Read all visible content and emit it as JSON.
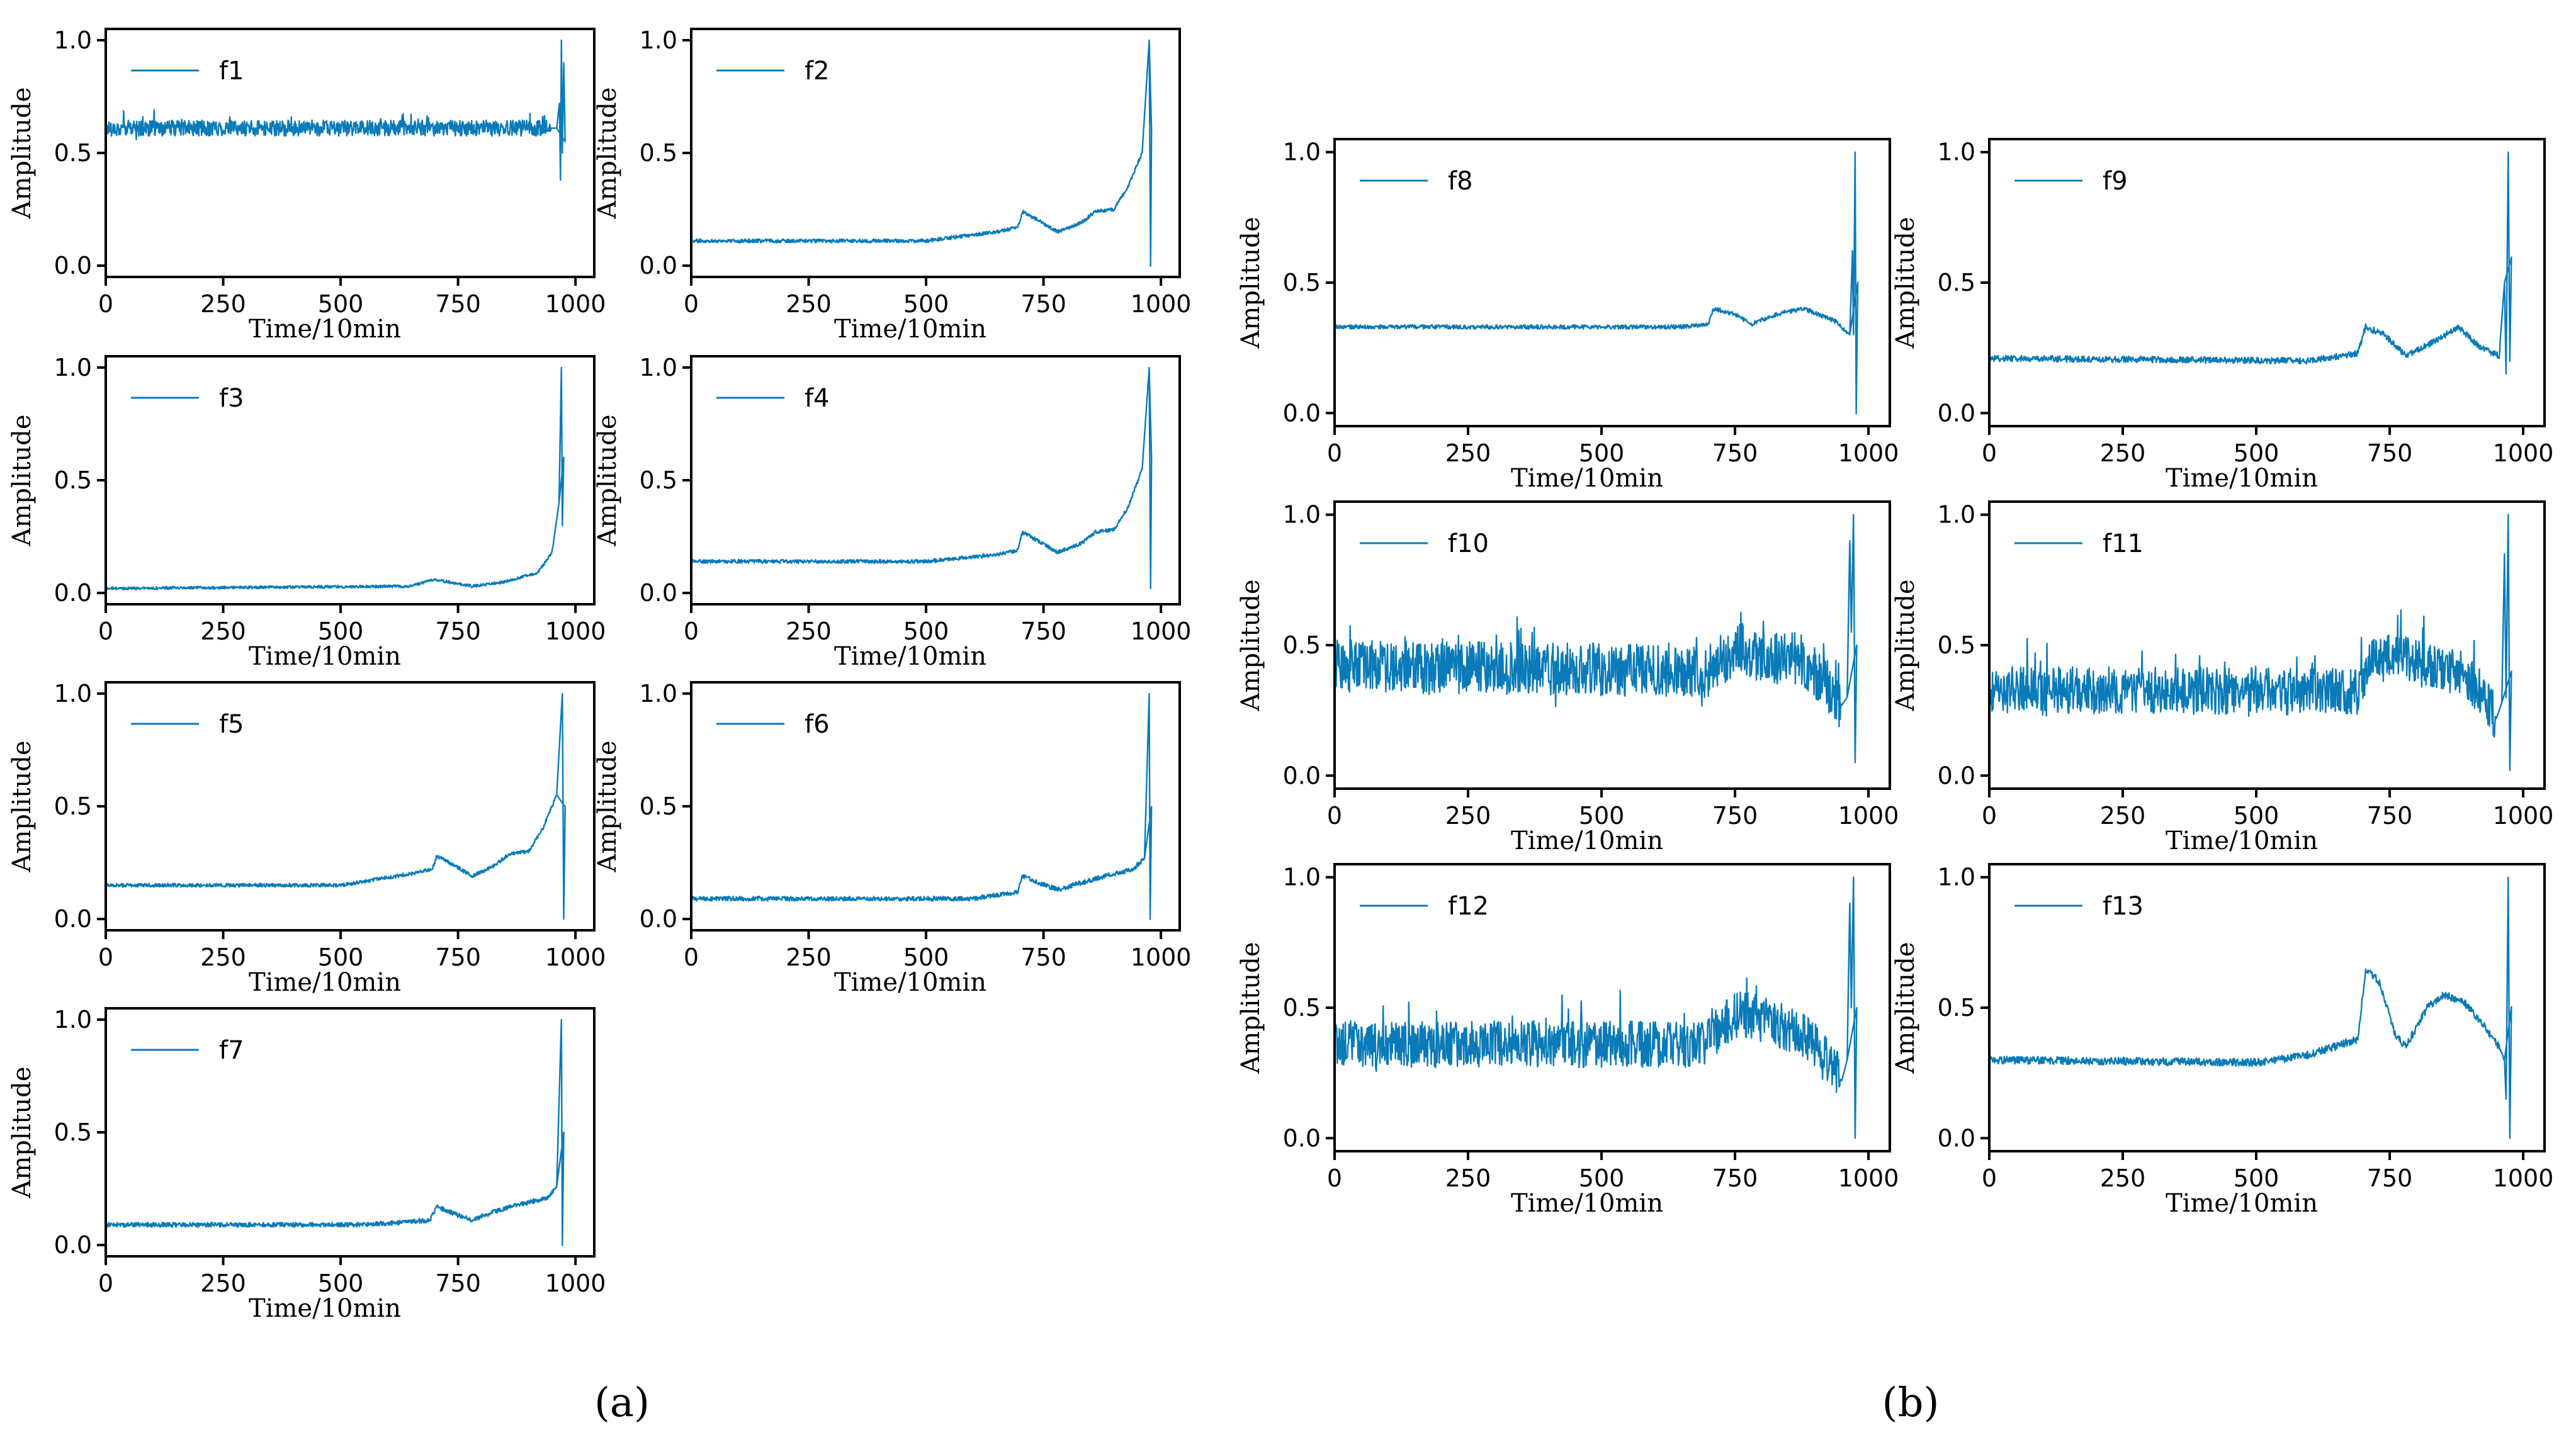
{
  "figure": {
    "panel_labels": [
      "(a)",
      "(b)"
    ],
    "series_color": "#0a7bb8"
  },
  "chart_data": [
    {
      "type": "line",
      "panel": "(a)",
      "title": "",
      "legend": "f1",
      "xlabel": "Time/10min",
      "ylabel": "Amplitude",
      "xlim": [
        0,
        1040
      ],
      "ylim": [
        -0.05,
        1.05
      ],
      "xticks": [
        0,
        250,
        500,
        750,
        1000
      ],
      "yticks": [
        0.0,
        0.5,
        1.0
      ],
      "legend_position": "top-left",
      "series": [
        {
          "name": "f1",
          "pattern": "noisy",
          "keyframes": [
            [
              0,
              0.61
            ],
            [
              960,
              0.61
            ],
            [
              966,
              0.72
            ],
            [
              968,
              0.38
            ],
            [
              970,
              1.0
            ],
            [
              972,
              0.5
            ],
            [
              975,
              0.9
            ],
            [
              978,
              0.55
            ]
          ],
          "noise_amplitude": 0.035
        }
      ]
    },
    {
      "type": "line",
      "panel": "(a)",
      "title": "",
      "legend": "f2",
      "xlabel": "Time/10min",
      "ylabel": "Amplitude",
      "xlim": [
        0,
        1040
      ],
      "ylim": [
        -0.05,
        1.05
      ],
      "xticks": [
        0,
        250,
        500,
        750,
        1000
      ],
      "yticks": [
        0.0,
        0.5,
        1.0
      ],
      "legend_position": "top-left",
      "series": [
        {
          "name": "f2",
          "pattern": "trend",
          "keyframes": [
            [
              0,
              0.11
            ],
            [
              500,
              0.11
            ],
            [
              650,
              0.15
            ],
            [
              695,
              0.17
            ],
            [
              705,
              0.24
            ],
            [
              740,
              0.2
            ],
            [
              780,
              0.15
            ],
            [
              830,
              0.19
            ],
            [
              860,
              0.24
            ],
            [
              900,
              0.25
            ],
            [
              930,
              0.35
            ],
            [
              960,
              0.5
            ],
            [
              975,
              1.0
            ],
            [
              978,
              0.0
            ],
            [
              980,
              0.6
            ]
          ],
          "noise_amplitude": 0.008
        }
      ]
    },
    {
      "type": "line",
      "panel": "(a)",
      "title": "",
      "legend": "f3",
      "xlabel": "Time/10min",
      "ylabel": "Amplitude",
      "xlim": [
        0,
        1040
      ],
      "ylim": [
        -0.05,
        1.05
      ],
      "xticks": [
        0,
        250,
        500,
        750,
        1000
      ],
      "yticks": [
        0.0,
        0.5,
        1.0
      ],
      "legend_position": "top-left",
      "series": [
        {
          "name": "f3",
          "pattern": "trend",
          "keyframes": [
            [
              0,
              0.02
            ],
            [
              650,
              0.03
            ],
            [
              700,
              0.06
            ],
            [
              780,
              0.03
            ],
            [
              850,
              0.05
            ],
            [
              920,
              0.09
            ],
            [
              950,
              0.18
            ],
            [
              965,
              0.4
            ],
            [
              970,
              1.0
            ],
            [
              972,
              0.3
            ],
            [
              975,
              0.6
            ]
          ],
          "noise_amplitude": 0.006
        }
      ]
    },
    {
      "type": "line",
      "panel": "(a)",
      "title": "",
      "legend": "f4",
      "xlabel": "Time/10min",
      "ylabel": "Amplitude",
      "xlim": [
        0,
        1040
      ],
      "ylim": [
        -0.05,
        1.05
      ],
      "xticks": [
        0,
        250,
        500,
        750,
        1000
      ],
      "yticks": [
        0.0,
        0.5,
        1.0
      ],
      "legend_position": "top-left",
      "series": [
        {
          "name": "f4",
          "pattern": "trend",
          "keyframes": [
            [
              0,
              0.14
            ],
            [
              500,
              0.14
            ],
            [
              650,
              0.17
            ],
            [
              695,
              0.19
            ],
            [
              705,
              0.27
            ],
            [
              740,
              0.23
            ],
            [
              780,
              0.18
            ],
            [
              830,
              0.22
            ],
            [
              860,
              0.27
            ],
            [
              900,
              0.28
            ],
            [
              930,
              0.38
            ],
            [
              960,
              0.55
            ],
            [
              975,
              1.0
            ],
            [
              978,
              0.02
            ],
            [
              980,
              0.6
            ]
          ],
          "noise_amplitude": 0.008
        }
      ]
    },
    {
      "type": "line",
      "panel": "(a)",
      "title": "",
      "legend": "f5",
      "xlabel": "Time/10min",
      "ylabel": "Amplitude",
      "xlim": [
        0,
        1040
      ],
      "ylim": [
        -0.05,
        1.05
      ],
      "xticks": [
        0,
        250,
        500,
        750,
        1000
      ],
      "yticks": [
        0.0,
        0.5,
        1.0
      ],
      "legend_position": "top-left",
      "series": [
        {
          "name": "f5",
          "pattern": "trend",
          "keyframes": [
            [
              0,
              0.15
            ],
            [
              500,
              0.15
            ],
            [
              650,
              0.2
            ],
            [
              695,
              0.22
            ],
            [
              705,
              0.28
            ],
            [
              740,
              0.24
            ],
            [
              780,
              0.19
            ],
            [
              830,
              0.24
            ],
            [
              860,
              0.29
            ],
            [
              900,
              0.3
            ],
            [
              930,
              0.4
            ],
            [
              960,
              0.55
            ],
            [
              972,
              1.0
            ],
            [
              975,
              0.0
            ],
            [
              978,
              0.5
            ]
          ],
          "noise_amplitude": 0.008
        }
      ]
    },
    {
      "type": "line",
      "panel": "(a)",
      "title": "",
      "legend": "f6",
      "xlabel": "Time/10min",
      "ylabel": "Amplitude",
      "xlim": [
        0,
        1040
      ],
      "ylim": [
        -0.05,
        1.05
      ],
      "xticks": [
        0,
        250,
        500,
        750,
        1000
      ],
      "yticks": [
        0.0,
        0.5,
        1.0
      ],
      "legend_position": "top-left",
      "series": [
        {
          "name": "f6",
          "pattern": "trend",
          "keyframes": [
            [
              0,
              0.09
            ],
            [
              600,
              0.09
            ],
            [
              695,
              0.12
            ],
            [
              705,
              0.19
            ],
            [
              740,
              0.16
            ],
            [
              780,
              0.13
            ],
            [
              830,
              0.16
            ],
            [
              880,
              0.19
            ],
            [
              940,
              0.22
            ],
            [
              965,
              0.27
            ],
            [
              975,
              1.0
            ],
            [
              977,
              0.0
            ],
            [
              980,
              0.5
            ]
          ],
          "noise_amplitude": 0.01
        }
      ]
    },
    {
      "type": "line",
      "panel": "(a)",
      "title": "",
      "legend": "f7",
      "xlabel": "Time/10min",
      "ylabel": "Amplitude",
      "xlim": [
        0,
        1040
      ],
      "ylim": [
        -0.05,
        1.05
      ],
      "xticks": [
        0,
        250,
        500,
        750,
        1000
      ],
      "yticks": [
        0.0,
        0.5,
        1.0
      ],
      "legend_position": "top-left",
      "series": [
        {
          "name": "f7",
          "pattern": "trend",
          "keyframes": [
            [
              0,
              0.09
            ],
            [
              550,
              0.09
            ],
            [
              690,
              0.11
            ],
            [
              705,
              0.17
            ],
            [
              740,
              0.14
            ],
            [
              780,
              0.11
            ],
            [
              830,
              0.15
            ],
            [
              880,
              0.18
            ],
            [
              940,
              0.21
            ],
            [
              960,
              0.26
            ],
            [
              970,
              1.0
            ],
            [
              972,
              0.0
            ],
            [
              975,
              0.5
            ]
          ],
          "noise_amplitude": 0.01
        }
      ]
    },
    {
      "type": "line",
      "panel": "(b)",
      "title": "",
      "legend": "f8",
      "xlabel": "Time/10min",
      "ylabel": "Amplitude",
      "xlim": [
        0,
        1040
      ],
      "ylim": [
        -0.05,
        1.05
      ],
      "xticks": [
        0,
        250,
        500,
        750,
        1000
      ],
      "yticks": [
        0.0,
        0.5,
        1.0
      ],
      "legend_position": "top-left",
      "series": [
        {
          "name": "f8",
          "pattern": "trend",
          "keyframes": [
            [
              0,
              0.33
            ],
            [
              650,
              0.33
            ],
            [
              700,
              0.34
            ],
            [
              710,
              0.4
            ],
            [
              750,
              0.38
            ],
            [
              780,
              0.34
            ],
            [
              830,
              0.38
            ],
            [
              880,
              0.4
            ],
            [
              940,
              0.35
            ],
            [
              965,
              0.3
            ],
            [
              970,
              0.62
            ],
            [
              972,
              0.3
            ],
            [
              975,
              1.0
            ],
            [
              977,
              0.0
            ],
            [
              980,
              0.5
            ]
          ],
          "noise_amplitude": 0.008
        }
      ]
    },
    {
      "type": "line",
      "panel": "(b)",
      "title": "",
      "legend": "f9",
      "xlabel": "Time/10min",
      "ylabel": "Amplitude",
      "xlim": [
        0,
        1040
      ],
      "ylim": [
        -0.05,
        1.05
      ],
      "xticks": [
        0,
        250,
        500,
        750,
        1000
      ],
      "yticks": [
        0.0,
        0.5,
        1.0
      ],
      "legend_position": "top-left",
      "series": [
        {
          "name": "f9",
          "pattern": "trend",
          "keyframes": [
            [
              0,
              0.21
            ],
            [
              600,
              0.2
            ],
            [
              690,
              0.23
            ],
            [
              705,
              0.33
            ],
            [
              740,
              0.3
            ],
            [
              780,
              0.22
            ],
            [
              830,
              0.27
            ],
            [
              880,
              0.33
            ],
            [
              920,
              0.25
            ],
            [
              955,
              0.22
            ],
            [
              965,
              0.5
            ],
            [
              968,
              0.15
            ],
            [
              972,
              1.0
            ],
            [
              975,
              0.2
            ],
            [
              978,
              0.6
            ]
          ],
          "noise_amplitude": 0.012
        }
      ]
    },
    {
      "type": "line",
      "panel": "(b)",
      "title": "",
      "legend": "f10",
      "xlabel": "Time/10min",
      "ylabel": "Amplitude",
      "xlim": [
        0,
        1040
      ],
      "ylim": [
        -0.05,
        1.05
      ],
      "xticks": [
        0,
        250,
        500,
        750,
        1000
      ],
      "yticks": [
        0.0,
        0.5,
        1.0
      ],
      "legend_position": "top-left",
      "series": [
        {
          "name": "f10",
          "pattern": "noisy",
          "keyframes": [
            [
              0,
              0.42
            ],
            [
              700,
              0.4
            ],
            [
              760,
              0.5
            ],
            [
              800,
              0.45
            ],
            [
              870,
              0.45
            ],
            [
              920,
              0.35
            ],
            [
              950,
              0.27
            ],
            [
              960,
              0.3
            ],
            [
              965,
              0.9
            ],
            [
              968,
              0.55
            ],
            [
              972,
              1.0
            ],
            [
              975,
              0.05
            ],
            [
              978,
              0.5
            ]
          ],
          "noise_amplitude": 0.1
        }
      ]
    },
    {
      "type": "line",
      "panel": "(b)",
      "title": "",
      "legend": "f11",
      "xlabel": "Time/10min",
      "ylabel": "Amplitude",
      "xlim": [
        0,
        1040
      ],
      "ylim": [
        -0.05,
        1.05
      ],
      "xticks": [
        0,
        250,
        500,
        750,
        1000
      ],
      "yticks": [
        0.0,
        0.5,
        1.0
      ],
      "legend_position": "top-left",
      "series": [
        {
          "name": "f11",
          "pattern": "noisy",
          "keyframes": [
            [
              0,
              0.33
            ],
            [
              690,
              0.32
            ],
            [
              720,
              0.45
            ],
            [
              760,
              0.45
            ],
            [
              880,
              0.4
            ],
            [
              920,
              0.32
            ],
            [
              950,
              0.22
            ],
            [
              960,
              0.28
            ],
            [
              965,
              0.85
            ],
            [
              968,
              0.3
            ],
            [
              972,
              1.0
            ],
            [
              975,
              0.02
            ],
            [
              978,
              0.4
            ]
          ],
          "noise_amplitude": 0.09
        }
      ]
    },
    {
      "type": "line",
      "panel": "(b)",
      "title": "",
      "legend": "f12",
      "xlabel": "Time/10min",
      "ylabel": "Amplitude",
      "xlim": [
        0,
        1040
      ],
      "ylim": [
        -0.05,
        1.05
      ],
      "xticks": [
        0,
        250,
        500,
        750,
        1000
      ],
      "yticks": [
        0.0,
        0.5,
        1.0
      ],
      "legend_position": "top-left",
      "series": [
        {
          "name": "f12",
          "pattern": "noisy",
          "keyframes": [
            [
              0,
              0.36
            ],
            [
              690,
              0.36
            ],
            [
              720,
              0.42
            ],
            [
              760,
              0.48
            ],
            [
              880,
              0.4
            ],
            [
              920,
              0.3
            ],
            [
              950,
              0.22
            ],
            [
              960,
              0.3
            ],
            [
              965,
              0.9
            ],
            [
              968,
              0.5
            ],
            [
              972,
              1.0
            ],
            [
              975,
              0.0
            ],
            [
              978,
              0.5
            ]
          ],
          "noise_amplitude": 0.09
        }
      ]
    },
    {
      "type": "line",
      "panel": "(b)",
      "title": "",
      "legend": "f13",
      "xlabel": "Time/10min",
      "ylabel": "Amplitude",
      "xlim": [
        0,
        1040
      ],
      "ylim": [
        -0.05,
        1.05
      ],
      "xticks": [
        0,
        250,
        500,
        750,
        1000
      ],
      "yticks": [
        0.0,
        0.5,
        1.0
      ],
      "legend_position": "top-left",
      "series": [
        {
          "name": "f13",
          "pattern": "trend",
          "keyframes": [
            [
              0,
              0.3
            ],
            [
              500,
              0.29
            ],
            [
              600,
              0.32
            ],
            [
              690,
              0.38
            ],
            [
              705,
              0.65
            ],
            [
              730,
              0.6
            ],
            [
              760,
              0.4
            ],
            [
              780,
              0.35
            ],
            [
              820,
              0.5
            ],
            [
              850,
              0.55
            ],
            [
              890,
              0.52
            ],
            [
              920,
              0.45
            ],
            [
              955,
              0.35
            ],
            [
              965,
              0.3
            ],
            [
              968,
              0.15
            ],
            [
              972,
              1.0
            ],
            [
              975,
              0.0
            ],
            [
              978,
              0.5
            ]
          ],
          "noise_amplitude": 0.015
        }
      ]
    }
  ]
}
